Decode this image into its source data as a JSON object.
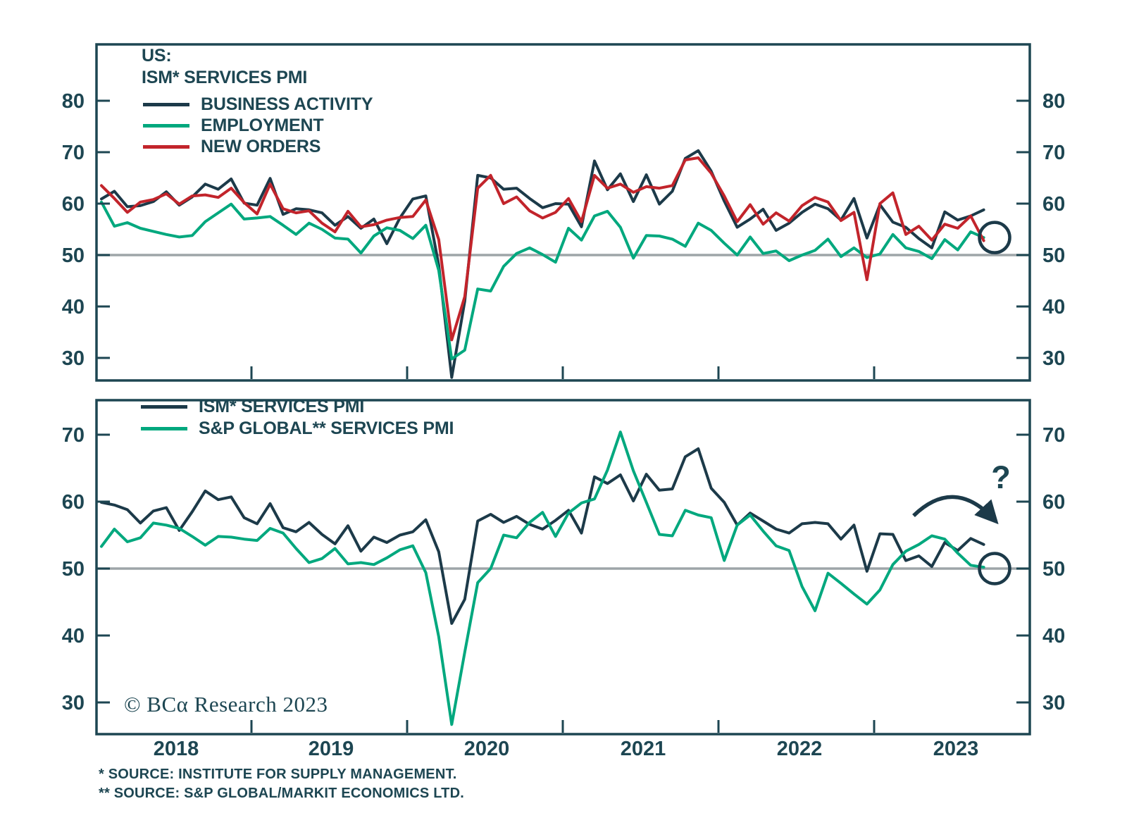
{
  "header": {
    "title_line1": "US:",
    "title_line2": "ISM* SERVICES PMI"
  },
  "colors": {
    "navy": "#1C3A49",
    "green": "#00A87E",
    "red": "#C2242B",
    "axis": "#1D4652",
    "text": "#1D4652",
    "reference_gray": "#9EA5A8",
    "background": "#FFFFFF"
  },
  "copyright": "© BCα Research 2023",
  "footnotes": [
    "*  SOURCE: INSTITUTE FOR SUPPLY MANAGEMENT.",
    "** SOURCE: S&P GLOBAL/MARKIT ECONOMICS LTD."
  ],
  "chart_data": [
    {
      "type": "line",
      "panel": "top",
      "title": "US: ISM* SERVICES PMI",
      "frequency": "monthly",
      "x_start": "2018-01",
      "x_end": "2023-09",
      "xticklabels": [
        "2018",
        "2019",
        "2020",
        "2021",
        "2022",
        "2023"
      ],
      "yticks": [
        30,
        40,
        50,
        60,
        70,
        80
      ],
      "ylim": [
        25,
        91
      ],
      "reference_line": 50,
      "grid": "off",
      "legend_position": "top-left",
      "series": [
        {
          "name": "BUSINESS ACTIVITY",
          "color": "#1C3A49",
          "values": [
            60.9,
            62.4,
            59.4,
            59.6,
            60.4,
            62.3,
            59.7,
            61.3,
            63.8,
            62.8,
            64.8,
            60.1,
            59.7,
            64.9,
            57.9,
            59.0,
            58.8,
            58.2,
            55.8,
            57.5,
            55.2,
            57.0,
            52.2,
            57.2,
            60.9,
            61.5,
            48.0,
            26.2,
            41.0,
            65.5,
            65.0,
            62.8,
            63.0,
            61.0,
            59.2,
            60.0,
            59.9,
            55.5,
            68.3,
            62.7,
            65.8,
            60.4,
            65.6,
            59.9,
            62.4,
            68.8,
            70.3,
            66.3,
            60.5,
            55.4,
            57.0,
            58.9,
            54.8,
            56.2,
            58.3,
            59.9,
            59.0,
            56.8,
            61.0,
            53.3,
            59.8,
            56.4,
            55.4,
            53.2,
            51.4,
            58.4,
            56.8,
            57.6,
            58.8
          ]
        },
        {
          "name": "EMPLOYMENT",
          "color": "#00A87E",
          "values": [
            60.3,
            55.6,
            56.3,
            55.2,
            54.6,
            54.0,
            53.5,
            53.8,
            56.5,
            58.2,
            59.9,
            57.0,
            57.2,
            57.5,
            55.8,
            54.0,
            56.2,
            55.0,
            53.3,
            53.1,
            50.4,
            53.7,
            55.3,
            54.8,
            53.2,
            55.8,
            47.0,
            29.8,
            31.5,
            43.4,
            43.0,
            47.8,
            50.3,
            51.4,
            50.1,
            48.6,
            55.2,
            52.9,
            57.6,
            58.5,
            55.4,
            49.4,
            53.8,
            53.7,
            53.1,
            51.7,
            56.2,
            54.8,
            52.3,
            50.0,
            53.5,
            50.3,
            50.8,
            48.9,
            50.0,
            50.9,
            53.1,
            49.7,
            51.4,
            49.5,
            50.2,
            54.0,
            51.4,
            50.7,
            49.3,
            53.0,
            51.0,
            54.5,
            53.4
          ]
        },
        {
          "name": "NEW ORDERS",
          "color": "#C2242B",
          "values": [
            63.5,
            61.0,
            58.3,
            60.3,
            60.8,
            61.9,
            59.9,
            61.5,
            61.7,
            61.2,
            63.0,
            60.2,
            58.0,
            63.8,
            59.0,
            58.2,
            58.6,
            56.2,
            54.5,
            58.5,
            55.5,
            55.9,
            56.8,
            57.3,
            57.5,
            60.7,
            53.0,
            33.5,
            41.9,
            63.0,
            65.5,
            60.0,
            61.3,
            58.6,
            57.2,
            58.3,
            61.0,
            56.5,
            65.5,
            63.0,
            63.8,
            62.2,
            63.3,
            63.0,
            63.5,
            68.5,
            68.9,
            65.9,
            61.5,
            56.5,
            59.8,
            56.0,
            58.2,
            56.6,
            59.6,
            61.2,
            60.3,
            56.7,
            58.3,
            45.2,
            60.0,
            62.1,
            54.0,
            55.6,
            52.9,
            56.0,
            55.2,
            57.6,
            52.8
          ]
        }
      ],
      "annotations": [
        {
          "type": "circle",
          "value": 53.4,
          "note": "latest readings circled"
        }
      ]
    },
    {
      "type": "line",
      "panel": "bottom",
      "frequency": "monthly",
      "x_start": "2018-01",
      "x_end": "2023-09",
      "xticklabels": [
        "2018",
        "2019",
        "2020",
        "2021",
        "2022",
        "2023"
      ],
      "yticks": [
        30,
        40,
        50,
        60,
        70
      ],
      "ylim": [
        25,
        76
      ],
      "reference_line": 50,
      "grid": "off",
      "legend_position": "top-left",
      "series": [
        {
          "name": "ISM* SERVICES PMI",
          "color": "#1C3A49",
          "values": [
            59.9,
            59.5,
            58.8,
            56.8,
            58.6,
            59.1,
            55.7,
            58.5,
            61.6,
            60.3,
            60.7,
            57.6,
            56.7,
            59.7,
            56.1,
            55.5,
            56.9,
            55.1,
            53.7,
            56.4,
            52.6,
            54.7,
            53.9,
            55.0,
            55.5,
            57.3,
            52.5,
            41.8,
            45.4,
            57.1,
            58.1,
            56.9,
            57.8,
            56.6,
            55.9,
            57.2,
            58.7,
            55.3,
            63.7,
            62.7,
            64.0,
            60.1,
            64.1,
            61.7,
            61.9,
            66.7,
            67.9,
            62.0,
            59.9,
            56.5,
            58.3,
            57.1,
            55.9,
            55.3,
            56.7,
            56.9,
            56.7,
            54.4,
            56.5,
            49.6,
            55.2,
            55.1,
            51.2,
            51.9,
            50.3,
            53.9,
            52.7,
            54.5,
            53.6
          ]
        },
        {
          "name": "S&P GLOBAL** SERVICES PMI",
          "color": "#00A87E",
          "values": [
            53.3,
            55.9,
            54.0,
            54.6,
            56.8,
            56.5,
            56.0,
            54.8,
            53.5,
            54.8,
            54.7,
            54.4,
            54.2,
            56.0,
            55.3,
            53.0,
            50.9,
            51.5,
            53.0,
            50.7,
            50.9,
            50.6,
            51.6,
            52.8,
            53.4,
            49.4,
            39.8,
            26.7,
            37.5,
            47.9,
            50.0,
            55.0,
            54.6,
            56.9,
            58.4,
            54.8,
            58.3,
            59.8,
            60.4,
            64.7,
            70.4,
            64.6,
            59.9,
            55.1,
            54.9,
            58.7,
            58.0,
            57.6,
            51.2,
            56.5,
            58.0,
            55.6,
            53.4,
            52.7,
            47.3,
            43.7,
            49.3,
            47.8,
            46.2,
            44.7,
            46.8,
            50.6,
            52.6,
            53.6,
            54.9,
            54.4,
            52.3,
            50.5,
            50.2
          ]
        }
      ],
      "annotations": [
        {
          "type": "circle",
          "value": 50.0,
          "note": "latest reading circled"
        },
        {
          "type": "question-mark",
          "label": "?"
        },
        {
          "type": "curved-arrow",
          "note": "implied roll-over of PMI"
        }
      ]
    }
  ]
}
